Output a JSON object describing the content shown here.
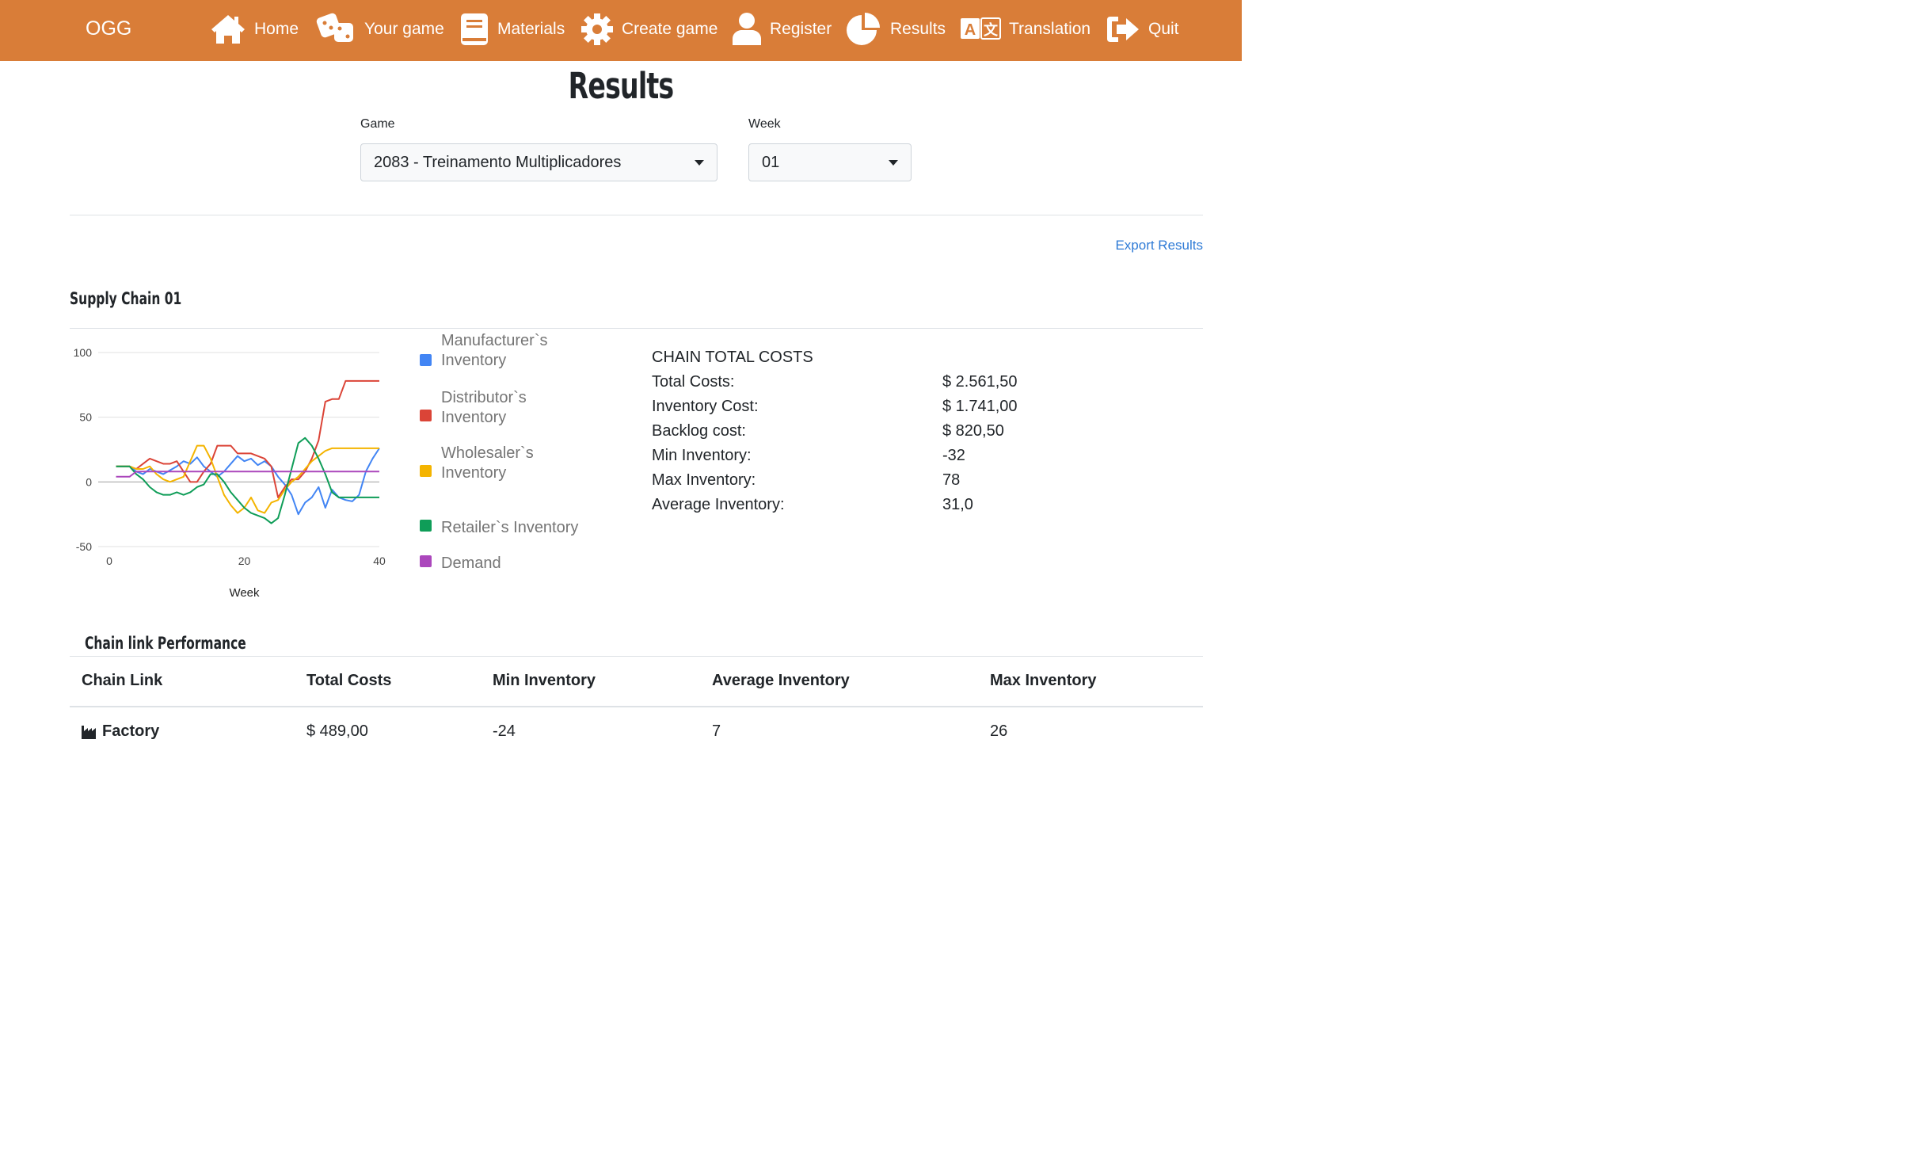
{
  "nav": {
    "brand": "OGG",
    "items": [
      {
        "label": "Home",
        "icon": "home-icon"
      },
      {
        "label": "Your game",
        "icon": "dice-icon"
      },
      {
        "label": "Materials",
        "icon": "book-icon"
      },
      {
        "label": "Create game",
        "icon": "gear-icon"
      },
      {
        "label": "Register",
        "icon": "user-icon"
      },
      {
        "label": "Results",
        "icon": "pie-chart-icon"
      },
      {
        "label": "Translation",
        "icon": "translate-icon"
      },
      {
        "label": "Quit",
        "icon": "sign-out-icon"
      }
    ]
  },
  "page": {
    "title": "Results",
    "game_label": "Game",
    "game_value": "2083 - Treinamento Multiplicadores",
    "week_label": "Week",
    "week_value": "01",
    "export_link": "Export Results"
  },
  "supply_chain": {
    "title": "Supply Chain 01",
    "legend": [
      {
        "label": "Manufacturer`s Inventory",
        "color": "#4285f4"
      },
      {
        "label": "Distributor`s Inventory",
        "color": "#db4437"
      },
      {
        "label": "Wholesaler`s Inventory",
        "color": "#f4b400"
      },
      {
        "label": "Retailer`s Inventory",
        "color": "#0f9d58"
      },
      {
        "label": "Demand",
        "color": "#ab47bc"
      }
    ],
    "costs": {
      "heading": "CHAIN TOTAL COSTS",
      "rows": [
        {
          "label": "Total Costs:",
          "value": "$ 2.561,50"
        },
        {
          "label": "Inventory Cost:",
          "value": "$ 1.741,00"
        },
        {
          "label": "Backlog cost:",
          "value": "$ 820,50"
        },
        {
          "label": "Min Inventory:",
          "value": "-32"
        },
        {
          "label": "Max Inventory:",
          "value": "78"
        },
        {
          "label": "Average Inventory:",
          "value": "31,0"
        }
      ]
    }
  },
  "chart_data": {
    "type": "line",
    "xlabel": "Week",
    "ylabel": "",
    "xlim": [
      0,
      40
    ],
    "ylim": [
      -50,
      100
    ],
    "x_ticks": [
      "0",
      "20",
      "40"
    ],
    "y_ticks": [
      "100",
      "50",
      "0",
      "-50"
    ],
    "grid": true,
    "legend_position": "right",
    "x": [
      1,
      2,
      3,
      4,
      5,
      6,
      7,
      8,
      9,
      10,
      11,
      12,
      13,
      14,
      15,
      16,
      17,
      18,
      19,
      20,
      21,
      22,
      23,
      24,
      25,
      26,
      27,
      28,
      29,
      30,
      31,
      32,
      33,
      34,
      35,
      36,
      37,
      38,
      39,
      40
    ],
    "series": [
      {
        "name": "Manufacturer`s Inventory",
        "color": "#4285f4",
        "values": [
          12,
          12,
          12,
          8,
          6,
          10,
          8,
          6,
          9,
          12,
          16,
          14,
          19,
          12,
          8,
          4,
          8,
          14,
          20,
          16,
          18,
          13,
          16,
          12,
          4,
          -2,
          -10,
          -25,
          -16,
          -12,
          -4,
          -20,
          -6,
          -12,
          -14,
          -15,
          -10,
          8,
          18,
          26
        ]
      },
      {
        "name": "Distributor`s Inventory",
        "color": "#db4437",
        "values": [
          12,
          12,
          12,
          10,
          14,
          18,
          16,
          14,
          14,
          16,
          8,
          0,
          0,
          8,
          14,
          28,
          28,
          28,
          22,
          22,
          22,
          20,
          18,
          12,
          -12,
          -4,
          2,
          2,
          8,
          18,
          32,
          62,
          64,
          64,
          78,
          78,
          78,
          78,
          78,
          78
        ]
      },
      {
        "name": "Wholesaler`s Inventory",
        "color": "#f4b400",
        "values": [
          12,
          12,
          12,
          10,
          10,
          12,
          6,
          2,
          0,
          2,
          4,
          16,
          28,
          28,
          18,
          4,
          -10,
          -18,
          -24,
          -20,
          -12,
          -22,
          -24,
          -16,
          -14,
          -6,
          0,
          4,
          10,
          16,
          20,
          24,
          26,
          26,
          26,
          26,
          26,
          26,
          26,
          26
        ]
      },
      {
        "name": "Retailer`s Inventory",
        "color": "#0f9d58",
        "values": [
          12,
          12,
          12,
          6,
          2,
          -4,
          -8,
          -10,
          -10,
          -8,
          -10,
          -8,
          -4,
          -2,
          6,
          6,
          0,
          -8,
          -14,
          -20,
          -24,
          -26,
          -28,
          -32,
          -28,
          -10,
          10,
          30,
          34,
          28,
          18,
          6,
          -8,
          -12,
          -12,
          -12,
          -12,
          -12,
          -12,
          -12
        ]
      },
      {
        "name": "Demand",
        "color": "#ab47bc",
        "values": [
          4,
          4,
          4,
          8,
          8,
          8,
          8,
          8,
          8,
          8,
          8,
          8,
          8,
          8,
          8,
          8,
          8,
          8,
          8,
          8,
          8,
          8,
          8,
          8,
          8,
          8,
          8,
          8,
          8,
          8,
          8,
          8,
          8,
          8,
          8,
          8,
          8,
          8,
          8,
          8
        ]
      }
    ]
  },
  "performance": {
    "title": "Chain link Performance",
    "columns": [
      "Chain Link",
      "Total Costs",
      "Min Inventory",
      "Average Inventory",
      "Max Inventory"
    ],
    "rows": [
      {
        "link": "Factory",
        "icon": "factory-icon",
        "total_costs": "$ 489,00",
        "min_inventory": "-24",
        "avg_inventory": "7",
        "max_inventory": "26"
      }
    ]
  }
}
